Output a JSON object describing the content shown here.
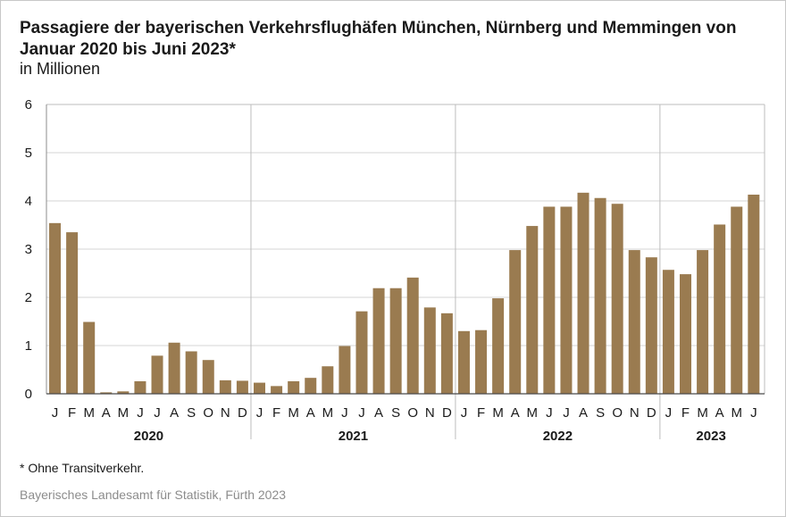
{
  "chart_data": {
    "type": "bar",
    "title": "Passagiere der bayerischen Verkehrsflughäfen München, Nürnberg und Memmingen von Januar 2020 bis Juni 2023*",
    "subtitle": "in Millionen",
    "ylim": [
      0,
      6
    ],
    "yticks": [
      "0",
      "1",
      "2",
      "3",
      "4",
      "5",
      "6"
    ],
    "grid": true,
    "bar_color": "#9a7b50",
    "years": [
      {
        "label": "2020",
        "months": [
          "J",
          "F",
          "M",
          "A",
          "M",
          "J",
          "J",
          "A",
          "S",
          "O",
          "N",
          "D"
        ],
        "values": [
          3.54,
          3.35,
          1.49,
          0.03,
          0.05,
          0.26,
          0.79,
          1.06,
          0.88,
          0.7,
          0.28,
          0.27
        ]
      },
      {
        "label": "2021",
        "months": [
          "J",
          "F",
          "M",
          "A",
          "M",
          "J",
          "J",
          "A",
          "S",
          "O",
          "N",
          "D"
        ],
        "values": [
          0.23,
          0.16,
          0.26,
          0.33,
          0.57,
          0.99,
          1.71,
          2.19,
          2.19,
          2.41,
          1.79,
          1.67
        ]
      },
      {
        "label": "2022",
        "months": [
          "J",
          "F",
          "M",
          "A",
          "M",
          "J",
          "J",
          "A",
          "S",
          "O",
          "N",
          "D"
        ],
        "values": [
          1.3,
          1.32,
          1.98,
          2.98,
          3.48,
          3.88,
          3.88,
          4.17,
          4.06,
          3.94,
          2.98,
          2.83
        ]
      },
      {
        "label": "2023",
        "months": [
          "J",
          "F",
          "M",
          "A",
          "M",
          "J"
        ],
        "values": [
          2.57,
          2.48,
          2.98,
          3.51,
          3.88,
          4.13
        ]
      }
    ]
  },
  "footnote": "* Ohne Transitverkehr.",
  "source": "Bayerisches Landesamt für Statistik, Fürth 2023"
}
